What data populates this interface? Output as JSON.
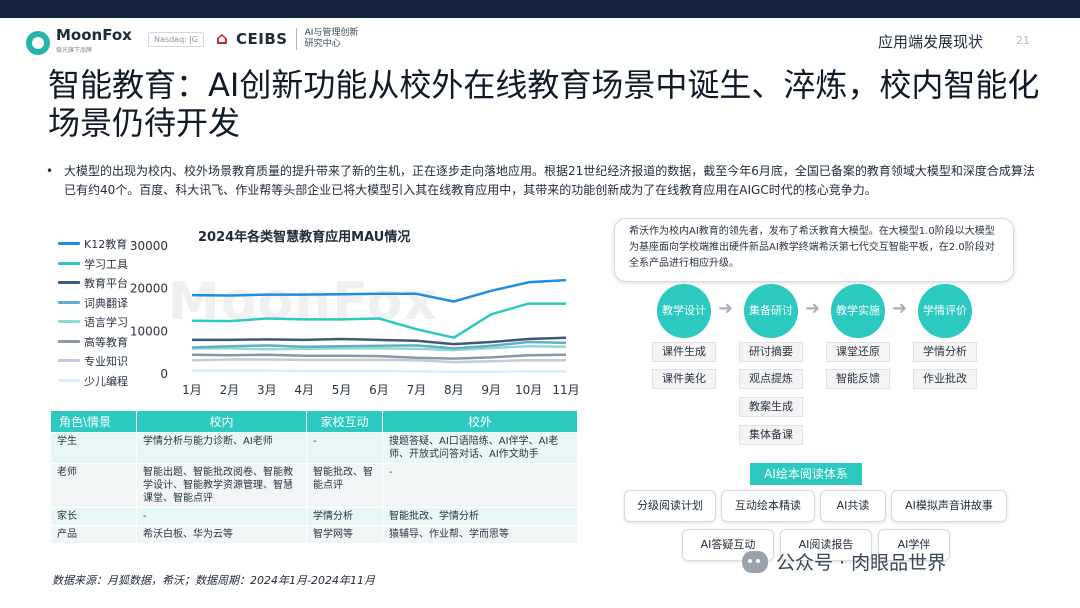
{
  "header": {
    "brand": "MoonFox",
    "brand_sub": "极光旗下品牌",
    "nasdaq": "Nasdaq: JG",
    "partner": "CEIBS",
    "partner_cn_line1": "AI与管理创新",
    "partner_cn_line2": "研究中心",
    "section": "应用端发展现状",
    "page": "21"
  },
  "title": "智能教育：AI创新功能从校外在线教育场景中诞生、淬炼，校内智能化场景仍待开发",
  "bullet": "大模型的出现为校内、校外场景教育质量的提升带来了新的生机，正在逐步走向落地应用。根据21世纪经济报道的数据，截至今年6月底，全国已备案的教育领域大模型和深度合成算法已有约40个。百度、科大讯飞、作业帮等头部企业已将大模型引入其在线教育应用中，其带来的功能创新成为了在线教育应用在AIGC时代的核心竞争力。",
  "chart_data": {
    "type": "line",
    "title": "2024年各类智慧教育应用MAU情况",
    "xlabel": "",
    "ylabel": "",
    "x": [
      "1月",
      "2月",
      "3月",
      "4月",
      "5月",
      "6月",
      "7月",
      "8月",
      "9月",
      "10月",
      "11月"
    ],
    "yticks": [
      "0",
      "10000",
      "20000",
      "30000"
    ],
    "ylim": [
      0,
      30000
    ],
    "grid": false,
    "legend_position": "left",
    "series": [
      {
        "name": "K12教育",
        "color": "#1f8de0",
        "values": [
          18500,
          18400,
          18600,
          18600,
          18700,
          18800,
          18800,
          17000,
          19500,
          21500,
          22000
        ]
      },
      {
        "name": "学习工具",
        "color": "#2bc9bf",
        "values": [
          12500,
          12400,
          13000,
          12800,
          12800,
          13000,
          10500,
          8500,
          14000,
          16500,
          16500
        ]
      },
      {
        "name": "教育平台",
        "color": "#3c5a74",
        "values": [
          8000,
          8000,
          8100,
          8000,
          8200,
          8000,
          7800,
          7000,
          7500,
          8200,
          8500
        ]
      },
      {
        "name": "词典翻译",
        "color": "#5fb0c8",
        "values": [
          6200,
          6500,
          6700,
          6400,
          6500,
          6600,
          6700,
          6000,
          6600,
          7500,
          7300
        ]
      },
      {
        "name": "语言学习",
        "color": "#8fd9d2",
        "values": [
          6000,
          6000,
          5800,
          5900,
          6000,
          6000,
          5900,
          5600,
          6100,
          6500,
          6400
        ]
      },
      {
        "name": "高等教育",
        "color": "#8a98a8",
        "values": [
          4500,
          4400,
          4500,
          4300,
          4300,
          4200,
          3800,
          3600,
          3900,
          4400,
          4500
        ]
      },
      {
        "name": "专业知识",
        "color": "#c3ccd6",
        "values": [
          3200,
          3400,
          3400,
          3300,
          3300,
          3300,
          3200,
          2800,
          3000,
          3200,
          3200
        ]
      },
      {
        "name": "少儿编程",
        "color": "#d9eefb",
        "values": [
          800,
          800,
          800,
          700,
          700,
          700,
          600,
          500,
          500,
          600,
          600
        ]
      }
    ]
  },
  "table": {
    "headers": [
      "角色\\情景",
      "校内",
      "家校互动",
      "校外"
    ],
    "rows": [
      [
        "学生",
        "学情分析与能力诊断、AI老师",
        "-",
        "搜题答疑、AI口语陪练、AI伴学、AI老师、开放式问答对话、AI作文助手"
      ],
      [
        "老师",
        "智能出题、智能批改阅卷、智能教学设计、智能教学资源管理、智慧课堂、智能点评",
        "智能批改、智能点评",
        "-"
      ],
      [
        "家长",
        "-",
        "学情分析",
        "智能批改、学情分析"
      ],
      [
        "产品",
        "希沃白板、华为云等",
        "智学网等",
        "猿辅导、作业帮、学而思等"
      ]
    ]
  },
  "source": "数据来源：月狐数据，希沃；数据周期：2024年1月-2024年11月",
  "watermark": "MoonFox",
  "note": "希沃作为校内AI教育的领先者，发布了希沃教育大模型。在大模型1.0阶段以大模型为基座面向学校端推出硬件新品AI教学终端希沃第七代交互智能平板，在2.0阶段对全系产品进行相应升级。",
  "flow": {
    "steps": [
      {
        "label": "教学设计",
        "items": [
          "课件生成",
          "课件美化"
        ]
      },
      {
        "label": "集备研讨",
        "items": [
          "研讨摘要",
          "观点提炼",
          "教案生成",
          "集体备课"
        ]
      },
      {
        "label": "教学实施",
        "items": [
          "课堂还原",
          "智能反馈"
        ]
      },
      {
        "label": "学情评价",
        "items": [
          "学情分析",
          "作业批改"
        ]
      }
    ],
    "arrow": "➜"
  },
  "reading": {
    "title": "AI绘本阅读体系",
    "items": [
      "分级阅读计划",
      "互动绘本精读",
      "AI共读",
      "AI模拟声音讲故事",
      "AI答疑互动",
      "AI阅读报告",
      "AI学伴"
    ]
  },
  "footer_wechat": "公众号 · 肉眼品世界"
}
